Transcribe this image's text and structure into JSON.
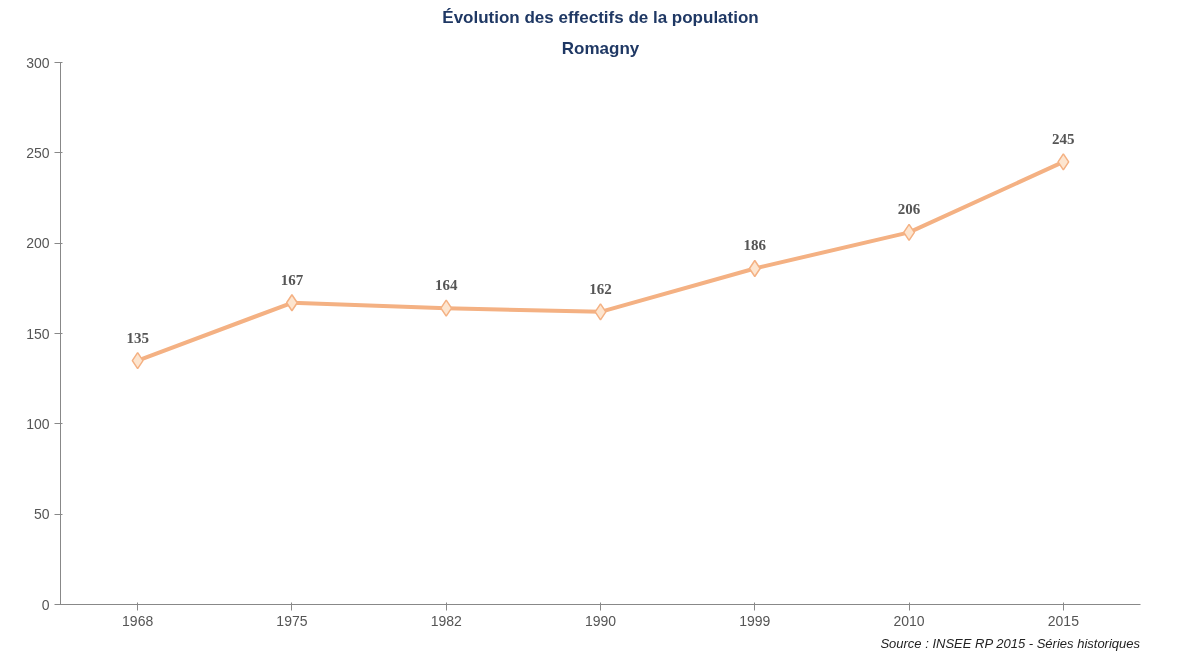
{
  "chart_data": {
    "type": "line",
    "title": "Évolution des effectifs de la population",
    "subtitle": "Romagny",
    "categories": [
      "1968",
      "1975",
      "1982",
      "1990",
      "1999",
      "2010",
      "2015"
    ],
    "series": [
      {
        "color": "#f4b183",
        "values": [
          135,
          167,
          164,
          162,
          186,
          206,
          245
        ]
      }
    ],
    "ylim": [
      0,
      300
    ],
    "yticks": [
      0,
      50,
      100,
      150,
      200,
      250,
      300
    ],
    "data_labels": true,
    "marker": "diamond",
    "line_style": "solid",
    "grid": false,
    "annotations": [
      "Source : INSEE RP 2015 - Séries historiques"
    ]
  }
}
